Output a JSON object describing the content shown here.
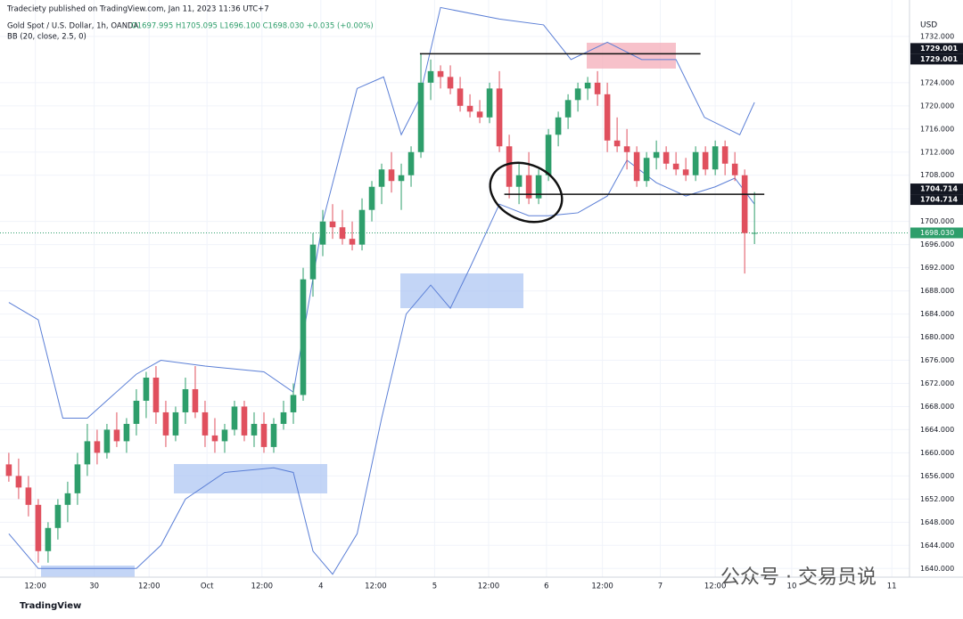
{
  "chart_data": {
    "type": "candlestick",
    "publisher": "Tradeciety published on TradingView.com, Jan 11, 2023 11:36 UTC+7",
    "title": "Gold Spot / U.S. Dollar, 1h, OANDA",
    "ohlc_summary": "O1697.995 H1705.095 L1696.100 C1698.030 +0.035 (+0.00%)",
    "indicator": "BB (20, close, 2.5, 0)",
    "currency": "USD",
    "footer": "TradingView",
    "watermark": "公众号 · 交易员说",
    "up_color": "#2e9e6b",
    "down_color": "#e0505e",
    "band_color": "#5b7fd6",
    "grid": true,
    "xlim": [
      -0.9,
      91.8
    ],
    "ylim": [
      1638.5,
      1738.3
    ],
    "yticks": [
      {
        "value": 1732,
        "label": "1732.000"
      },
      {
        "value": 1724,
        "label": "1724.000"
      },
      {
        "value": 1720,
        "label": "1720.000"
      },
      {
        "value": 1716,
        "label": "1716.000"
      },
      {
        "value": 1712,
        "label": "1712.000"
      },
      {
        "value": 1708,
        "label": "1708.000"
      },
      {
        "value": 1700,
        "label": "1700.000"
      },
      {
        "value": 1696,
        "label": "1696.000"
      },
      {
        "value": 1692,
        "label": "1692.000"
      },
      {
        "value": 1688,
        "label": "1688.000"
      },
      {
        "value": 1684,
        "label": "1684.000"
      },
      {
        "value": 1680,
        "label": "1680.000"
      },
      {
        "value": 1676,
        "label": "1676.000"
      },
      {
        "value": 1672,
        "label": "1672.000"
      },
      {
        "value": 1668,
        "label": "1668.000"
      },
      {
        "value": 1664,
        "label": "1664.000"
      },
      {
        "value": 1660,
        "label": "1660.000"
      },
      {
        "value": 1656,
        "label": "1656.000"
      },
      {
        "value": 1652,
        "label": "1652.000"
      },
      {
        "value": 1648,
        "label": "1648.000"
      },
      {
        "value": 1644,
        "label": "1644.000"
      },
      {
        "value": 1640,
        "label": "1640.000"
      }
    ],
    "xticks": [
      {
        "value": 2.7,
        "label": "12:00"
      },
      {
        "value": 8.7,
        "label": "30"
      },
      {
        "value": 14.3,
        "label": "12:00"
      },
      {
        "value": 20.2,
        "label": "Oct"
      },
      {
        "value": 25.8,
        "label": "12:00"
      },
      {
        "value": 31.8,
        "label": "4"
      },
      {
        "value": 37.4,
        "label": "12:00"
      },
      {
        "value": 43.4,
        "label": "5"
      },
      {
        "value": 48.9,
        "label": "12:00"
      },
      {
        "value": 54.8,
        "label": "6"
      },
      {
        "value": 60.5,
        "label": "12:00"
      },
      {
        "value": 66.4,
        "label": "7"
      },
      {
        "value": 72,
        "label": "12:00"
      },
      {
        "value": 79.8,
        "label": "10"
      },
      {
        "value": 90,
        "label": "11"
      }
    ],
    "candles": [
      [
        1658,
        1660,
        1655,
        1656
      ],
      [
        1656,
        1659,
        1652,
        1654
      ],
      [
        1654,
        1656,
        1649,
        1651
      ],
      [
        1651,
        1652,
        1641,
        1643
      ],
      [
        1643,
        1648,
        1641,
        1647
      ],
      [
        1647,
        1652,
        1645,
        1651
      ],
      [
        1651,
        1655,
        1648,
        1653
      ],
      [
        1653,
        1660,
        1651,
        1658
      ],
      [
        1658,
        1665,
        1656,
        1662
      ],
      [
        1662,
        1664,
        1658,
        1660
      ],
      [
        1660,
        1665,
        1659,
        1664
      ],
      [
        1664,
        1667,
        1661,
        1662
      ],
      [
        1662,
        1666,
        1660,
        1665
      ],
      [
        1665,
        1671,
        1663,
        1669
      ],
      [
        1669,
        1674,
        1666,
        1673
      ],
      [
        1673,
        1675,
        1665,
        1667
      ],
      [
        1667,
        1669,
        1661,
        1663
      ],
      [
        1663,
        1668,
        1662,
        1667
      ],
      [
        1667,
        1673,
        1665,
        1671
      ],
      [
        1671,
        1675,
        1666,
        1667
      ],
      [
        1667,
        1669,
        1661,
        1663
      ],
      [
        1663,
        1666,
        1660,
        1662
      ],
      [
        1662,
        1665,
        1660,
        1664
      ],
      [
        1664,
        1669,
        1663,
        1668
      ],
      [
        1668,
        1669,
        1662,
        1663
      ],
      [
        1663,
        1667,
        1661,
        1665
      ],
      [
        1665,
        1667,
        1660,
        1661
      ],
      [
        1661,
        1666,
        1660,
        1665
      ],
      [
        1665,
        1669,
        1664,
        1667
      ],
      [
        1667,
        1672,
        1665,
        1670
      ],
      [
        1670,
        1692,
        1669,
        1690
      ],
      [
        1690,
        1698,
        1687,
        1696
      ],
      [
        1696,
        1702,
        1694,
        1700
      ],
      [
        1700,
        1703,
        1697,
        1699
      ],
      [
        1699,
        1702,
        1696,
        1697
      ],
      [
        1697,
        1700,
        1695,
        1696
      ],
      [
        1696,
        1704,
        1695,
        1702
      ],
      [
        1702,
        1707,
        1700,
        1706
      ],
      [
        1706,
        1710,
        1703,
        1709
      ],
      [
        1709,
        1712,
        1705,
        1707
      ],
      [
        1707,
        1710,
        1702,
        1708
      ],
      [
        1708,
        1713,
        1706,
        1712
      ],
      [
        1712,
        1729,
        1711,
        1724
      ],
      [
        1724,
        1728,
        1721,
        1726
      ],
      [
        1726,
        1727,
        1723,
        1725
      ],
      [
        1725,
        1727,
        1722,
        1723
      ],
      [
        1723,
        1725,
        1719,
        1720
      ],
      [
        1720,
        1722,
        1718,
        1719
      ],
      [
        1719,
        1721,
        1717,
        1718
      ],
      [
        1718,
        1724,
        1717,
        1723
      ],
      [
        1723,
        1726,
        1712,
        1713
      ],
      [
        1713,
        1715,
        1704,
        1706
      ],
      [
        1706,
        1710,
        1703,
        1708
      ],
      [
        1708,
        1712,
        1703,
        1704
      ],
      [
        1704,
        1709,
        1703,
        1708
      ],
      [
        1708,
        1716,
        1707,
        1715
      ],
      [
        1715,
        1719,
        1713,
        1718
      ],
      [
        1718,
        1722,
        1716,
        1721
      ],
      [
        1721,
        1724,
        1719,
        1723
      ],
      [
        1723,
        1725,
        1721,
        1724
      ],
      [
        1724,
        1726,
        1720,
        1722
      ],
      [
        1722,
        1724,
        1712,
        1714
      ],
      [
        1714,
        1718,
        1712,
        1713
      ],
      [
        1713,
        1716,
        1709,
        1712
      ],
      [
        1712,
        1713,
        1706,
        1707
      ],
      [
        1707,
        1712,
        1706,
        1711
      ],
      [
        1711,
        1714,
        1709,
        1712
      ],
      [
        1712,
        1713,
        1709,
        1710
      ],
      [
        1710,
        1712,
        1708,
        1709
      ],
      [
        1709,
        1711,
        1707,
        1708
      ],
      [
        1708,
        1713,
        1707,
        1712
      ],
      [
        1712,
        1713,
        1708,
        1709
      ],
      [
        1709,
        1714,
        1708,
        1713
      ],
      [
        1713,
        1714,
        1708,
        1710
      ],
      [
        1710,
        1712,
        1707,
        1708
      ],
      [
        1708,
        1709,
        1691,
        1697.995
      ],
      [
        1697.995,
        1705.095,
        1696.1,
        1698.03
      ]
    ],
    "bands": [
      {
        "x": [
          0,
          3,
          5.5,
          8,
          13,
          15.5,
          20,
          26,
          29,
          32,
          35.5,
          38.2,
          40,
          41.8,
          44,
          50,
          54.5,
          57.3,
          61,
          64.5,
          68,
          70.9,
          74.5,
          76
        ],
        "values": [
          1686,
          1683,
          1666,
          1666,
          1673.6,
          1676,
          1675,
          1674,
          1670.5,
          1700,
          1723,
          1725,
          1715,
          1721,
          1737,
          1735,
          1734,
          1728,
          1731,
          1728,
          1728,
          1718,
          1715,
          1720.6
        ]
      },
      {
        "x": [
          0,
          3,
          8,
          13,
          15.5,
          18,
          22,
          27,
          29,
          31,
          33,
          35.5,
          38,
          40.5,
          43,
          45,
          47,
          50,
          53,
          55,
          58,
          61,
          63,
          66,
          69,
          72,
          74,
          76
        ],
        "values": [
          1646,
          1640,
          1640,
          1640,
          1644,
          1652,
          1656.6,
          1657.4,
          1656.6,
          1643,
          1639,
          1646,
          1666,
          1684,
          1689,
          1685,
          1692,
          1703,
          1701,
          1701,
          1701.5,
          1704.4,
          1710.6,
          1706.7,
          1704.4,
          1706,
          1707.5,
          1703
        ]
      }
    ],
    "levels": [
      {
        "value": 1729.001,
        "label": "1729.001",
        "x": [
          41.9,
          70.5
        ]
      },
      {
        "value": 1704.714,
        "label": "1704.714",
        "x": [
          50.5,
          77
        ]
      }
    ],
    "last_price": {
      "value": 1698.03,
      "label": "1698.030",
      "color": "#2e9e6b"
    }
  }
}
